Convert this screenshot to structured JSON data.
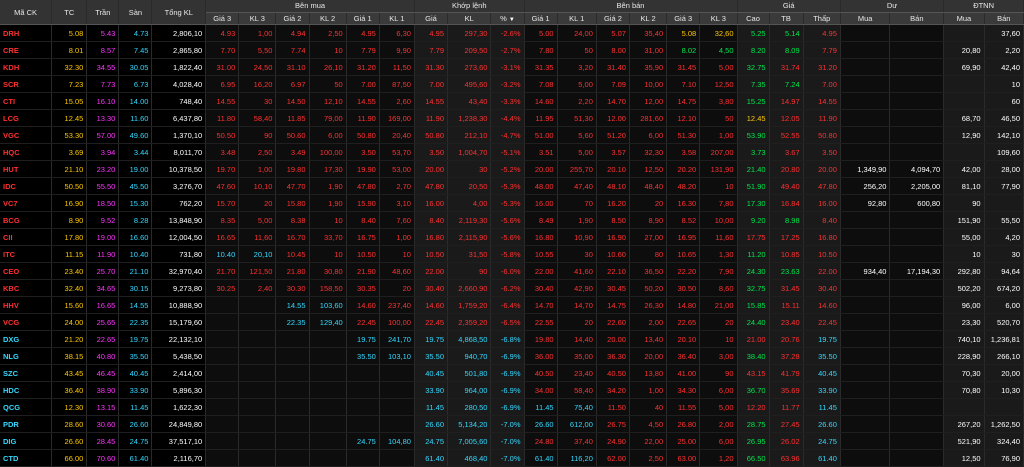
{
  "header": {
    "groups": {
      "ma_ck": "Mã CK",
      "tc": "TC",
      "tran": "Trần",
      "san": "Sàn",
      "tong_kl": "Tổng KL",
      "ben_mua": "Bên mua",
      "khop_lenh": "Khớp lệnh",
      "ben_ban": "Bên bán",
      "gia": "Giá",
      "du": "Dư",
      "dtnn": "ĐTNN"
    },
    "sub": {
      "gia3": "Giá 3",
      "kl3": "KL 3",
      "gia2": "Giá 2",
      "kl2": "KL 2",
      "gia1": "Giá 1",
      "kl1": "KL 1",
      "kl_gia": "Giá",
      "kl_kl": "KL",
      "kl_pct": "%",
      "b_gia1": "Giá 1",
      "b_kl1": "KL 1",
      "b_gia2": "Giá 2",
      "b_kl2": "KL 2",
      "b_gia3": "Giá 3",
      "b_kl3": "KL 3",
      "cao": "Cao",
      "tb": "TB",
      "thap": "Thấp",
      "du_mua": "Mua",
      "du_ban": "Bán",
      "nn_mua": "Mua",
      "nn_ban": "Bán"
    },
    "sort_icon": "sort-down-icon"
  },
  "colors": {
    "red": "#ff3030",
    "cyan": "#34d8ff",
    "yellow": "#ffc800",
    "green": "#00e64d",
    "magenta": "#ff34ff",
    "white": "#ffffff"
  },
  "rows": [
    {
      "sym": "DRH",
      "tc": "5.08",
      "tran": "5.43",
      "san": "4.73",
      "vol": "2,806,10",
      "bg3": "4.93",
      "bk3": "1,00",
      "bg2": "4.94",
      "bk2": "2,50",
      "bg1": "4.95",
      "bk1": "6,30",
      "mp": "4.95",
      "mk": "297,30",
      "pct": "-2.6%",
      "sg1": "5.00",
      "sk1": "24,00",
      "sg2": "5.07",
      "sk2": "35,40",
      "sg3": "5.08",
      "sk3": "32,60",
      "cao": "5.25",
      "tb": "5.14",
      "thap": "4.95",
      "dm": "",
      "db": "",
      "nm": "",
      "nb": "37,60"
    },
    {
      "sym": "CRE",
      "tc": "8.01",
      "tran": "8.57",
      "san": "7.45",
      "vol": "2,865,80",
      "bg3": "7.70",
      "bk3": "5,50",
      "bg2": "7.74",
      "bk2": "10",
      "bg1": "7.79",
      "bk1": "9,90",
      "mp": "7.79",
      "mk": "209,50",
      "pct": "-2.7%",
      "sg1": "7.80",
      "sk1": "50",
      "sg2": "8.00",
      "sk2": "31,00",
      "sg3": "8.02",
      "sk3": "4,50",
      "cao": "8.20",
      "tb": "8.09",
      "thap": "7.79",
      "dm": "",
      "db": "",
      "nm": "20,80",
      "nb": "2,20"
    },
    {
      "sym": "KDH",
      "tc": "32.30",
      "tran": "34.55",
      "san": "30.05",
      "vol": "1,822,40",
      "bg3": "31.00",
      "bk3": "24,50",
      "bg2": "31.10",
      "bk2": "26,10",
      "bg1": "31.20",
      "bk1": "11,50",
      "mp": "31.30",
      "mk": "273,60",
      "pct": "-3.1%",
      "sg1": "31.35",
      "sk1": "3,20",
      "sg2": "31.40",
      "sk2": "35,90",
      "sg3": "31.45",
      "sk3": "5,00",
      "cao": "32.75",
      "tb": "31.74",
      "thap": "31.20",
      "dm": "",
      "db": "",
      "nm": "69,90",
      "nb": "42,40"
    },
    {
      "sym": "SCR",
      "tc": "7.23",
      "tran": "7.73",
      "san": "6.73",
      "vol": "4,028,40",
      "bg3": "6.95",
      "bk3": "16,20",
      "bg2": "6.97",
      "bk2": "50",
      "bg1": "7.00",
      "bk1": "87,50",
      "mp": "7.00",
      "mk": "495,60",
      "pct": "-3.2%",
      "sg1": "7.08",
      "sk1": "5,00",
      "sg2": "7.09",
      "sk2": "10,00",
      "sg3": "7.10",
      "sk3": "12,50",
      "cao": "7.35",
      "tb": "7.24",
      "thap": "7.00",
      "dm": "",
      "db": "",
      "nm": "",
      "nb": "10"
    },
    {
      "sym": "CTI",
      "tc": "15.05",
      "tran": "16.10",
      "san": "14.00",
      "vol": "748,40",
      "bg3": "14.55",
      "bk3": "30",
      "bg2": "14.50",
      "bk2": "12,10",
      "bg1": "14.55",
      "bk1": "2,60",
      "mp": "14.55",
      "mk": "43,40",
      "pct": "-3.3%",
      "sg1": "14.60",
      "sk1": "2,20",
      "sg2": "14.70",
      "sk2": "12,00",
      "sg3": "14.75",
      "sk3": "3,80",
      "cao": "15.25",
      "tb": "14.97",
      "thap": "14.55",
      "dm": "",
      "db": "",
      "nm": "",
      "nb": "60"
    },
    {
      "sym": "LCG",
      "tc": "12.45",
      "tran": "13.30",
      "san": "11.60",
      "vol": "6,437,80",
      "bg3": "11.80",
      "bk3": "58,40",
      "bg2": "11.85",
      "bk2": "79,00",
      "bg1": "11.90",
      "bk1": "169,00",
      "mp": "11.90",
      "mk": "1,238,30",
      "pct": "-4.4%",
      "sg1": "11.95",
      "sk1": "51,30",
      "sg2": "12.00",
      "sk2": "281,60",
      "sg3": "12.10",
      "sk3": "50",
      "cao": "12.45",
      "tb": "12.05",
      "thap": "11.90",
      "dm": "",
      "db": "",
      "nm": "68,70",
      "nb": "46,50"
    },
    {
      "sym": "VGC",
      "tc": "53.30",
      "tran": "57.00",
      "san": "49.60",
      "vol": "1,370,10",
      "bg3": "50.50",
      "bk3": "90",
      "bg2": "50.60",
      "bk2": "6,00",
      "bg1": "50.80",
      "bk1": "20,40",
      "mp": "50.80",
      "mk": "212,10",
      "pct": "-4.7%",
      "sg1": "51.00",
      "sk1": "5,60",
      "sg2": "51.20",
      "sk2": "6,00",
      "sg3": "51.30",
      "sk3": "1,00",
      "cao": "53.90",
      "tb": "52.55",
      "thap": "50.80",
      "dm": "",
      "db": "",
      "nm": "12,90",
      "nb": "142,10"
    },
    {
      "sym": "HQC",
      "tc": "3.69",
      "tran": "3.94",
      "san": "3.44",
      "vol": "8,011,70",
      "bg3": "3.48",
      "bk3": "2,50",
      "bg2": "3.49",
      "bk2": "100,00",
      "bg1": "3.50",
      "bk1": "53,70",
      "mp": "3.50",
      "mk": "1,004,70",
      "pct": "-5.1%",
      "sg1": "3.51",
      "sk1": "5,00",
      "sg2": "3.57",
      "sk2": "32,30",
      "sg3": "3.58",
      "sk3": "207,00",
      "cao": "3.73",
      "tb": "3.67",
      "thap": "3.50",
      "dm": "",
      "db": "",
      "nm": "",
      "nb": "109,60"
    },
    {
      "sym": "HUT",
      "tc": "21.10",
      "tran": "23.20",
      "san": "19.00",
      "vol": "10,378,50",
      "bg3": "19.70",
      "bk3": "1,00",
      "bg2": "19.80",
      "bk2": "17,30",
      "bg1": "19.90",
      "bk1": "53,00",
      "mp": "20.00",
      "mk": "30",
      "pct": "-5.2%",
      "sg1": "20.00",
      "sk1": "255,70",
      "sg2": "20.10",
      "sk2": "12,50",
      "sg3": "20.20",
      "sk3": "131,90",
      "cao": "21.40",
      "tb": "20.80",
      "thap": "20.00",
      "dm": "1,349,90",
      "db": "4,094,70",
      "nm": "42,00",
      "nb": "28,00"
    },
    {
      "sym": "IDC",
      "tc": "50.50",
      "tran": "55.50",
      "san": "45.50",
      "vol": "3,276,70",
      "bg3": "47.60",
      "bk3": "10,10",
      "bg2": "47.70",
      "bk2": "1,90",
      "bg1": "47.80",
      "bk1": "2,70",
      "mp": "47.80",
      "mk": "20,50",
      "pct": "-5.3%",
      "sg1": "48.00",
      "sk1": "47,40",
      "sg2": "48.10",
      "sk2": "48,40",
      "sg3": "48.20",
      "sk3": "10",
      "cao": "51.90",
      "tb": "49.40",
      "thap": "47.80",
      "dm": "256,20",
      "db": "2,205,00",
      "nm": "81,10",
      "nb": "77,90"
    },
    {
      "sym": "VC7",
      "tc": "16.90",
      "tran": "18.50",
      "san": "15.30",
      "vol": "762,20",
      "bg3": "15.70",
      "bk3": "20",
      "bg2": "15.80",
      "bk2": "1,90",
      "bg1": "15.90",
      "bk1": "3,10",
      "mp": "16.00",
      "mk": "4,00",
      "pct": "-5.3%",
      "sg1": "16.00",
      "sk1": "70",
      "sg2": "16.20",
      "sk2": "20",
      "sg3": "16.30",
      "sk3": "7,80",
      "cao": "17.30",
      "tb": "16.84",
      "thap": "16.00",
      "dm": "92,80",
      "db": "600,80",
      "nm": "90",
      "nb": ""
    },
    {
      "sym": "BCG",
      "tc": "8.90",
      "tran": "9.52",
      "san": "8.28",
      "vol": "13,848,90",
      "bg3": "8.35",
      "bk3": "5,00",
      "bg2": "8.38",
      "bk2": "10",
      "bg1": "8.40",
      "bk1": "7,60",
      "mp": "8.40",
      "mk": "2,119,30",
      "pct": "-5.6%",
      "sg1": "8.49",
      "sk1": "1,90",
      "sg2": "8.50",
      "sk2": "8,90",
      "sg3": "8.52",
      "sk3": "10,00",
      "cao": "9.20",
      "tb": "8.98",
      "thap": "8.40",
      "dm": "",
      "db": "",
      "nm": "151,90",
      "nb": "55,50"
    },
    {
      "sym": "CII",
      "tc": "17.80",
      "tran": "19.00",
      "san": "16.60",
      "vol": "12,004,50",
      "bg3": "16.65",
      "bk3": "11,60",
      "bg2": "16.70",
      "bk2": "33,70",
      "bg1": "16.75",
      "bk1": "1,00",
      "mp": "16.80",
      "mk": "2,115,90",
      "pct": "-5.6%",
      "sg1": "16.80",
      "sk1": "10,90",
      "sg2": "16.90",
      "sk2": "27,00",
      "sg3": "16.95",
      "sk3": "11,60",
      "cao": "17.75",
      "tb": "17.25",
      "thap": "16.80",
      "dm": "",
      "db": "",
      "nm": "55,00",
      "nb": "4,20"
    },
    {
      "sym": "ITC",
      "tc": "11.15",
      "tran": "11.90",
      "san": "10.40",
      "vol": "731,80",
      "bg3": "10.40",
      "bk3": "20,10",
      "bg2": "10.45",
      "bk2": "10",
      "bg1": "10.50",
      "bk1": "10",
      "mp": "10.50",
      "mk": "31,50",
      "pct": "-5.8%",
      "sg1": "10.55",
      "sk1": "30",
      "sg2": "10.60",
      "sk2": "80",
      "sg3": "10.65",
      "sk3": "1,30",
      "cao": "11.20",
      "tb": "10.85",
      "thap": "10.50",
      "dm": "",
      "db": "",
      "nm": "10",
      "nb": "30"
    },
    {
      "sym": "CEO",
      "tc": "23.40",
      "tran": "25.70",
      "san": "21.10",
      "vol": "32,970,40",
      "bg3": "21.70",
      "bk3": "121,50",
      "bg2": "21.80",
      "bk2": "30,80",
      "bg1": "21.90",
      "bk1": "48,60",
      "mp": "22.00",
      "mk": "90",
      "pct": "-6.0%",
      "sg1": "22.00",
      "sk1": "41,60",
      "sg2": "22.10",
      "sk2": "36,50",
      "sg3": "22.20",
      "sk3": "7,90",
      "cao": "24.30",
      "tb": "23.63",
      "thap": "22.00",
      "dm": "934,40",
      "db": "17,194,30",
      "nm": "292,80",
      "nb": "94,64"
    },
    {
      "sym": "KBC",
      "tc": "32.40",
      "tran": "34.65",
      "san": "30.15",
      "vol": "9,273,80",
      "bg3": "30.25",
      "bk3": "2,40",
      "bg2": "30.30",
      "bk2": "158,50",
      "bg1": "30.35",
      "bk1": "20",
      "mp": "30.40",
      "mk": "2,660,90",
      "pct": "-6.2%",
      "sg1": "30.40",
      "sk1": "42,90",
      "sg2": "30.45",
      "sk2": "50,20",
      "sg3": "30.50",
      "sk3": "8,60",
      "cao": "32.75",
      "tb": "31.45",
      "thap": "30.40",
      "dm": "",
      "db": "",
      "nm": "502,20",
      "nb": "674,20"
    },
    {
      "sym": "HHV",
      "tc": "15.60",
      "tran": "16.65",
      "san": "14.55",
      "vol": "10,888,90",
      "bg3": "",
      "bk3": "",
      "bg2": "14.55",
      "bk2": "103,60",
      "bg1": "14.60",
      "bk1": "237,40",
      "mp": "14.60",
      "mk": "1,759,20",
      "pct": "-6.4%",
      "sg1": "14.70",
      "sk1": "14,70",
      "sg2": "14.75",
      "sk2": "26,30",
      "sg3": "14.80",
      "sk3": "21,00",
      "cao": "15.85",
      "tb": "15.11",
      "thap": "14.60",
      "dm": "",
      "db": "",
      "nm": "96,00",
      "nb": "6,00"
    },
    {
      "sym": "VCG",
      "tc": "24.00",
      "tran": "25.65",
      "san": "22.35",
      "vol": "15,179,60",
      "bg3": "",
      "bk3": "",
      "bg2": "22.35",
      "bk2": "129,40",
      "bg1": "22.45",
      "bk1": "100,00",
      "mp": "22.45",
      "mk": "2,359,20",
      "pct": "-6.5%",
      "sg1": "22.55",
      "sk1": "20",
      "sg2": "22.60",
      "sk2": "2,00",
      "sg3": "22.65",
      "sk3": "20",
      "cao": "24.40",
      "tb": "23.40",
      "thap": "22.45",
      "dm": "",
      "db": "",
      "nm": "23,30",
      "nb": "520,70"
    },
    {
      "sym": "DXG",
      "tc": "21.20",
      "tran": "22.65",
      "san": "19.75",
      "vol": "22,132,10",
      "bg3": "",
      "bk3": "",
      "bg2": "",
      "bk2": "",
      "bg1": "19.75",
      "bk1": "241,70",
      "mp": "19.75",
      "mk": "4,868,50",
      "pct": "-6.8%",
      "sg1": "19.80",
      "sk1": "14,40",
      "sg2": "20.00",
      "sk2": "13,40",
      "sg3": "20.10",
      "sk3": "10",
      "cao": "21.00",
      "tb": "20.76",
      "thap": "19.75",
      "dm": "",
      "db": "",
      "nm": "740,10",
      "nb": "1,236,81"
    },
    {
      "sym": "NLG",
      "tc": "38.15",
      "tran": "40.80",
      "san": "35.50",
      "vol": "5,438,50",
      "bg3": "",
      "bk3": "",
      "bg2": "",
      "bk2": "",
      "bg1": "35.50",
      "bk1": "103,10",
      "mp": "35.50",
      "mk": "940,70",
      "pct": "-6.9%",
      "sg1": "36.00",
      "sk1": "35,00",
      "sg2": "36.30",
      "sk2": "20,00",
      "sg3": "36.40",
      "sk3": "3,00",
      "cao": "38.40",
      "tb": "37.28",
      "thap": "35.50",
      "dm": "",
      "db": "",
      "nm": "228,90",
      "nb": "266,10"
    },
    {
      "sym": "SZC",
      "tc": "43.45",
      "tran": "46.45",
      "san": "40.45",
      "vol": "2,414,00",
      "bg3": "",
      "bk3": "",
      "bg2": "",
      "bk2": "",
      "bg1": "",
      "bk1": "",
      "mp": "40.45",
      "mk": "501,80",
      "pct": "-6.9%",
      "sg1": "40.50",
      "sk1": "23,40",
      "sg2": "40.50",
      "sk2": "13,80",
      "sg3": "41.00",
      "sk3": "90",
      "cao": "43.15",
      "tb": "41.79",
      "thap": "40.45",
      "dm": "",
      "db": "",
      "nm": "70,30",
      "nb": "20,00"
    },
    {
      "sym": "HDC",
      "tc": "36.40",
      "tran": "38.90",
      "san": "33.90",
      "vol": "5,896,30",
      "bg3": "",
      "bk3": "",
      "bg2": "",
      "bk2": "",
      "bg1": "",
      "bk1": "",
      "mp": "33.90",
      "mk": "964,00",
      "pct": "-6.9%",
      "sg1": "34.00",
      "sk1": "58,40",
      "sg2": "34.20",
      "sk2": "1,00",
      "sg3": "34.30",
      "sk3": "6,00",
      "cao": "36.70",
      "tb": "35.69",
      "thap": "33.90",
      "dm": "",
      "db": "",
      "nm": "70,80",
      "nb": "10,30"
    },
    {
      "sym": "QCG",
      "tc": "12.30",
      "tran": "13.15",
      "san": "11.45",
      "vol": "1,622,30",
      "bg3": "",
      "bk3": "",
      "bg2": "",
      "bk2": "",
      "bg1": "",
      "bk1": "",
      "mp": "11.45",
      "mk": "280,50",
      "pct": "-6.9%",
      "sg1": "11.45",
      "sk1": "75,40",
      "sg2": "11.50",
      "sk2": "40",
      "sg3": "11.55",
      "sk3": "5,00",
      "cao": "12.20",
      "tb": "11.77",
      "thap": "11.45",
      "dm": "",
      "db": "",
      "nm": "",
      "nb": ""
    },
    {
      "sym": "PDR",
      "tc": "28.60",
      "tran": "30.60",
      "san": "26.60",
      "vol": "24,849,80",
      "bg3": "",
      "bk3": "",
      "bg2": "",
      "bk2": "",
      "bg1": "",
      "bk1": "",
      "mp": "26.60",
      "mk": "5,134,20",
      "pct": "-7.0%",
      "sg1": "26.60",
      "sk1": "612,00",
      "sg2": "26.75",
      "sk2": "4,50",
      "sg3": "26.80",
      "sk3": "2,00",
      "cao": "28.75",
      "tb": "27.45",
      "thap": "26.60",
      "dm": "",
      "db": "",
      "nm": "267,20",
      "nb": "1,262,50"
    },
    {
      "sym": "DIG",
      "tc": "26.60",
      "tran": "28.45",
      "san": "24.75",
      "vol": "37,517,10",
      "bg3": "",
      "bk3": "",
      "bg2": "",
      "bk2": "",
      "bg1": "24.75",
      "bk1": "104,80",
      "mp": "24.75",
      "mk": "7,005,60",
      "pct": "-7.0%",
      "sg1": "24.80",
      "sk1": "37,40",
      "sg2": "24.90",
      "sk2": "22,00",
      "sg3": "25.00",
      "sk3": "6,00",
      "cao": "26.95",
      "tb": "26.02",
      "thap": "24.75",
      "dm": "",
      "db": "",
      "nm": "521,90",
      "nb": "324,40"
    },
    {
      "sym": "CTD",
      "tc": "66.00",
      "tran": "70.60",
      "san": "61.40",
      "vol": "2,116,70",
      "bg3": "",
      "bk3": "",
      "bg2": "",
      "bk2": "",
      "bg1": "",
      "bk1": "",
      "mp": "61.40",
      "mk": "468,40",
      "pct": "-7.0%",
      "sg1": "61.40",
      "sk1": "116,20",
      "sg2": "62.00",
      "sk2": "2,50",
      "sg3": "63.00",
      "sk3": "1,20",
      "cao": "66.50",
      "tb": "63.96",
      "thap": "61.40",
      "dm": "",
      "db": "",
      "nm": "12,50",
      "nb": "76,90"
    }
  ]
}
